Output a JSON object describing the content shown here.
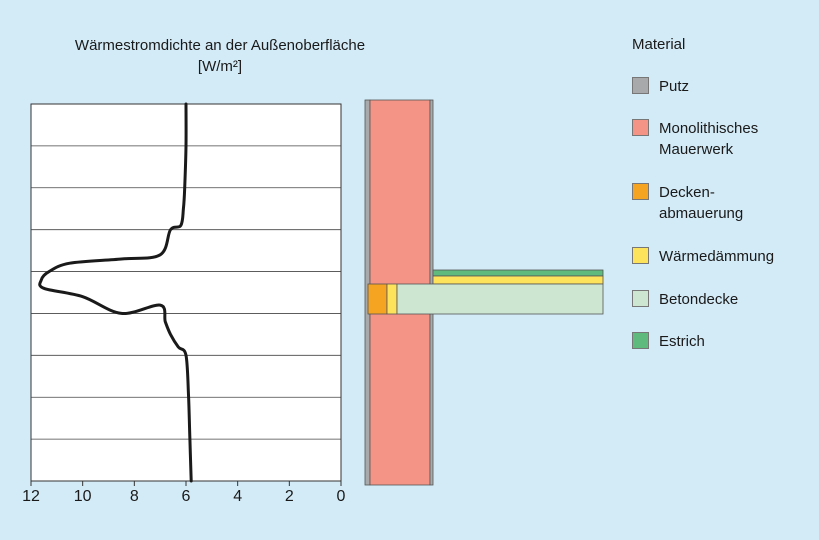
{
  "chart_title": "Wärmestromdichte an der Außenoberfläche",
  "chart_unit": "[W/m²]",
  "chart_data": {
    "type": "line",
    "title": "Wärmestromdichte an der Außenoberfläche",
    "xlabel": "[W/m²]",
    "ylabel": "",
    "x_ticks": [
      "12",
      "10",
      "8",
      "6",
      "4",
      "2",
      "0"
    ],
    "xlim": [
      12,
      0
    ],
    "ylim": [
      0,
      9
    ],
    "grid": true,
    "series": [
      {
        "values": [
          [
            5.8,
            0
          ],
          [
            5.85,
            1
          ],
          [
            5.9,
            2
          ],
          [
            6.0,
            3
          ],
          [
            6.3,
            3.2
          ],
          [
            6.6,
            3.5
          ],
          [
            6.8,
            3.8
          ],
          [
            7.0,
            4.2
          ],
          [
            8.5,
            4.0
          ],
          [
            10.0,
            4.4
          ],
          [
            11.5,
            4.6
          ],
          [
            11.6,
            4.8
          ],
          [
            11.3,
            5.0
          ],
          [
            10.5,
            5.2
          ],
          [
            8.5,
            5.3
          ],
          [
            7.0,
            5.4
          ],
          [
            6.6,
            6.0
          ],
          [
            6.2,
            6.1
          ],
          [
            6.1,
            6.5
          ],
          [
            6.05,
            7.0
          ],
          [
            6.0,
            8.0
          ],
          [
            6.0,
            9.0
          ]
        ]
      }
    ]
  },
  "legend": {
    "title": "Material",
    "items": [
      {
        "label": "Putz",
        "color": "#a7a9ab"
      },
      {
        "label": "Monolithisches\nMauerwerk",
        "color": "#f49486"
      },
      {
        "label": "Decken-\nabmauerung",
        "color": "#f5a421"
      },
      {
        "label": "Wärmedämmung",
        "color": "#fde35c"
      },
      {
        "label": "Betondecke",
        "color": "#cce6d2"
      },
      {
        "label": "Estrich",
        "color": "#5fba7d"
      }
    ]
  },
  "colors": {
    "background": "#d3ebf7",
    "plot_background": "#ffffff",
    "curve": "#1a1a1a"
  }
}
